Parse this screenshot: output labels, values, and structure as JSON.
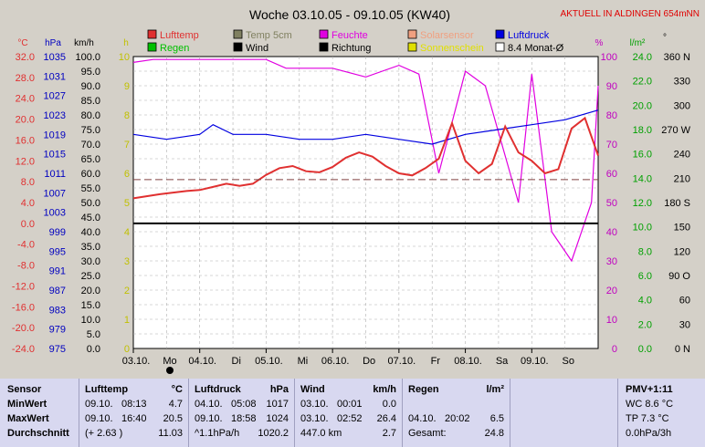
{
  "title": "Woche 03.10.05 - 09.10.05 (KW40)",
  "station_note": "AKTUELL IN ALDINGEN 654mNN",
  "axis_units": {
    "temp": "°C",
    "pressure": "hPa",
    "wind": "km/h",
    "hours": "h",
    "humidity": "%",
    "rain": "l/m²",
    "direction": "°"
  },
  "legend": [
    {
      "label": "Lufttemp",
      "color": "#e03030"
    },
    {
      "label": "Temp 5cm",
      "color": "#808060"
    },
    {
      "label": "Feuchte",
      "color": "#e000e0"
    },
    {
      "label": "Solarsensor",
      "color": "#f0a080"
    },
    {
      "label": "Luftdruck",
      "color": "#0000e0"
    },
    {
      "label": "Regen",
      "color": "#00c000"
    },
    {
      "label": "Wind",
      "color": "#000000"
    },
    {
      "label": "Richtung",
      "color": "#000000"
    },
    {
      "label": "Sonnenschein",
      "color": "#e0e000"
    },
    {
      "label": "8.4 Monat-Ø",
      "color": "#ffffff"
    }
  ],
  "chart_data": {
    "type": "line",
    "title": "Woche 03.10.05 - 09.10.05 (KW40)",
    "x_ticks": [
      {
        "date": "03.10.",
        "day": "Mo"
      },
      {
        "date": "04.10.",
        "day": "Di"
      },
      {
        "date": "05.10.",
        "day": "Mi"
      },
      {
        "date": "06.10.",
        "day": "Do"
      },
      {
        "date": "07.10.",
        "day": "Fr"
      },
      {
        "date": "08.10.",
        "day": "Sa"
      },
      {
        "date": "09.10.",
        "day": "So"
      }
    ],
    "axes": {
      "temp_c": [
        "32.0",
        "28.0",
        "24.0",
        "20.0",
        "16.0",
        "12.0",
        "8.0",
        "4.0",
        "0.0",
        "-4.0",
        "-8.0",
        "-12.0",
        "-16.0",
        "-20.0",
        "-24.0"
      ],
      "pressure_hpa": [
        "1035",
        "1031",
        "1027",
        "1023",
        "1019",
        "1015",
        "1011",
        "1007",
        "1003",
        "999",
        "995",
        "991",
        "987",
        "983",
        "979",
        "975"
      ],
      "wind_kmh": [
        "100.0",
        "95.0",
        "90.0",
        "85.0",
        "80.0",
        "75.0",
        "70.0",
        "65.0",
        "60.0",
        "55.0",
        "50.0",
        "45.0",
        "40.0",
        "35.0",
        "30.0",
        "25.0",
        "20.0",
        "15.0",
        "10.0",
        "5.0",
        "0.0"
      ],
      "sun_h": [
        "10",
        "9",
        "8",
        "7",
        "6",
        "5",
        "4",
        "3",
        "2",
        "1",
        "0"
      ],
      "humidity_pct": [
        "100",
        "90",
        "80",
        "70",
        "60",
        "50",
        "40",
        "30",
        "20",
        "10",
        "0"
      ],
      "rain_lm2": [
        "24.0",
        "22.0",
        "20.0",
        "18.0",
        "16.0",
        "14.0",
        "12.0",
        "10.0",
        "8.0",
        "6.0",
        "4.0",
        "2.0",
        "0.0"
      ],
      "direction_deg": [
        "360 N",
        "330",
        "300",
        "270 W",
        "240",
        "210",
        "180 S",
        "150",
        "120",
        "90 O",
        "60",
        "30",
        "0 N"
      ]
    },
    "ylim_temp": [
      -24,
      32
    ],
    "series": [
      {
        "name": "Lufttemp",
        "unit": "°C",
        "x_day": [
          0,
          0.2,
          0.4,
          0.6,
          0.8,
          1.0,
          1.2,
          1.4,
          1.6,
          1.8,
          2.0,
          2.2,
          2.4,
          2.6,
          2.8,
          3.0,
          3.2,
          3.4,
          3.6,
          3.8,
          4.0,
          4.2,
          4.4,
          4.6,
          4.8,
          5.0,
          5.2,
          5.4,
          5.6,
          5.8,
          6.0,
          6.2,
          6.4,
          6.6,
          6.8,
          7.0
        ],
        "values": [
          4.8,
          5.2,
          5.6,
          5.9,
          6.2,
          6.4,
          7.0,
          7.6,
          7.2,
          7.6,
          9.3,
          10.6,
          11.0,
          10.0,
          9.8,
          10.8,
          12.6,
          13.6,
          12.8,
          11.0,
          9.6,
          9.2,
          10.6,
          12.4,
          19.2,
          12.0,
          9.6,
          11.4,
          18.6,
          13.6,
          12.0,
          9.6,
          10.4,
          18.2,
          20.2,
          13.0
        ]
      },
      {
        "name": "Luftdruck",
        "unit": "hPa",
        "x_day": [
          0,
          0.5,
          1.0,
          1.2,
          1.5,
          2.0,
          2.5,
          3.0,
          3.5,
          4.0,
          4.5,
          5.0,
          5.5,
          6.0,
          6.5,
          7.0
        ],
        "values": [
          1019,
          1018,
          1019,
          1021,
          1019,
          1019,
          1018,
          1018,
          1019,
          1018,
          1017,
          1019,
          1020,
          1021,
          1022,
          1024
        ]
      },
      {
        "name": "Feuchte",
        "unit": "%",
        "x_day": [
          0,
          0.3,
          1.0,
          1.5,
          2.0,
          2.3,
          3.0,
          3.5,
          4.0,
          4.3,
          4.6,
          5.0,
          5.3,
          5.8,
          6.0,
          6.3,
          6.6,
          6.9,
          7.0
        ],
        "values": [
          98,
          99,
          99,
          99,
          99,
          96,
          96,
          93,
          97,
          94,
          60,
          95,
          90,
          50,
          94,
          40,
          30,
          50,
          90
        ]
      }
    ]
  },
  "panel": {
    "sensor": {
      "header": "Sensor",
      "rows": [
        "MinWert",
        "MaxWert",
        "Durchschnitt"
      ]
    },
    "lufttemp": {
      "header": "Lufttemp",
      "unit": "°C",
      "rows": [
        [
          "09.10.",
          "08:13",
          "4.7"
        ],
        [
          "09.10.",
          "16:40",
          "20.5"
        ],
        [
          "(+ 2.63 )",
          "",
          "11.03"
        ]
      ]
    },
    "luftdruck": {
      "header": "Luftdruck",
      "unit": "hPa",
      "rows": [
        [
          "04.10.",
          "05:08",
          "1017"
        ],
        [
          "09.10.",
          "18:58",
          "1024"
        ],
        [
          "^1.1hPa/h",
          "",
          "1020.2"
        ]
      ]
    },
    "wind": {
      "header": "Wind",
      "unit": "km/h",
      "rows": [
        [
          "03.10.",
          "00:01",
          "0.0"
        ],
        [
          "03.10.",
          "02:52",
          "26.4"
        ],
        [
          "447.0 km",
          "",
          "2.7"
        ]
      ]
    },
    "regen": {
      "header": "Regen",
      "unit": "l/m²",
      "rows": [
        [
          "",
          "",
          ""
        ],
        [
          "04.10.",
          "20:02",
          "6.5"
        ],
        [
          "Gesamt:",
          "",
          "24.8"
        ]
      ]
    },
    "pmv": {
      "header": "PMV+1:11",
      "rows": [
        "WC 8.6 °C",
        "TP 7.3 °C",
        "0.0hPa/3h"
      ]
    }
  }
}
